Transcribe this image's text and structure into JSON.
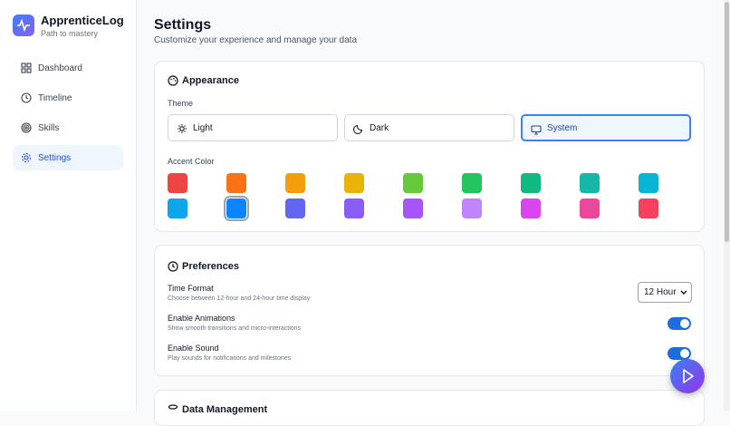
{
  "sidebar": {
    "brand": "ApprenticeLog",
    "tagline": "Path to mastery",
    "nav": [
      {
        "label": "Dashboard",
        "active": false
      },
      {
        "label": "Timeline",
        "active": false
      },
      {
        "label": "Skills",
        "active": false
      },
      {
        "label": "Settings",
        "active": true
      }
    ]
  },
  "header": {
    "title": "Settings",
    "subtitle": "Customize your experience and manage your data"
  },
  "appearance": {
    "title": "Appearance",
    "theme_label": "Theme",
    "themes": [
      {
        "label": "Light",
        "selected": false
      },
      {
        "label": "Dark",
        "selected": false
      },
      {
        "label": "System",
        "selected": true
      }
    ],
    "accent_label": "Accent Color",
    "accent_colors": [
      "#ef4444",
      "#f97316",
      "#f59e0b",
      "#eab308",
      "#65c93a",
      "#22c55e",
      "#10b981",
      "#14b8a6",
      "#06b6d4",
      "#0ea5e9",
      "#0a84ff",
      "#6366f1",
      "#8b5cf6",
      "#a855f7",
      "#c084fc",
      "#d946ef",
      "#ec4899",
      "#f43f5e"
    ],
    "accent_selected": 10
  },
  "preferences": {
    "title": "Preferences",
    "rows": [
      {
        "label": "Time Format",
        "description": "Choose between 12-hour and 24-hour time display",
        "control": "select",
        "value": "12 Hour"
      },
      {
        "label": "Enable Animations",
        "description": "Show smooth transitions and micro-interactions",
        "control": "toggle",
        "enabled": true
      },
      {
        "label": "Enable Sound",
        "description": "Play sounds for notifications and milestones",
        "control": "toggle",
        "enabled": true
      }
    ]
  },
  "data_management": {
    "title": "Data Management"
  }
}
